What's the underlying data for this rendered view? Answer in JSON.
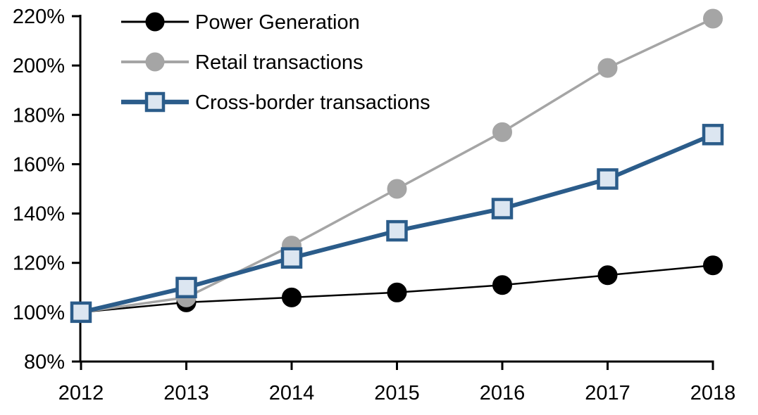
{
  "chart_data": {
    "type": "line",
    "title": "",
    "xlabel": "",
    "ylabel": "",
    "x": [
      2012,
      2013,
      2014,
      2015,
      2016,
      2017,
      2018
    ],
    "series": [
      {
        "name": "Power Generation",
        "values": [
          100,
          104,
          106,
          108,
          111,
          115,
          119
        ],
        "color": "#000000",
        "marker": "circle",
        "marker_fill": "#000000",
        "line_width": 2.5
      },
      {
        "name": "Retail transactions",
        "values": [
          100,
          106,
          127,
          150,
          173,
          199,
          219
        ],
        "color": "#a5a5a5",
        "marker": "circle",
        "marker_fill": "#a5a5a5",
        "line_width": 3.5
      },
      {
        "name": "Cross-border transactions",
        "values": [
          100,
          110,
          122,
          133,
          142,
          154,
          172
        ],
        "color": "#2b5c8a",
        "marker": "square",
        "marker_fill": "#dce6f1",
        "line_width": 6
      }
    ],
    "ylim": [
      80,
      220
    ],
    "ytick_step": 20,
    "ytick_suffix": "%",
    "xtick_labels": [
      "2012",
      "2013",
      "2014",
      "2015",
      "2016",
      "2017",
      "2018"
    ],
    "ytick_labels": [
      "80%",
      "100%",
      "120%",
      "140%",
      "160%",
      "180%",
      "200%",
      "220%"
    ],
    "grid": false,
    "legend_position": "top-left",
    "axis_color": "#000000",
    "background": "#ffffff"
  }
}
